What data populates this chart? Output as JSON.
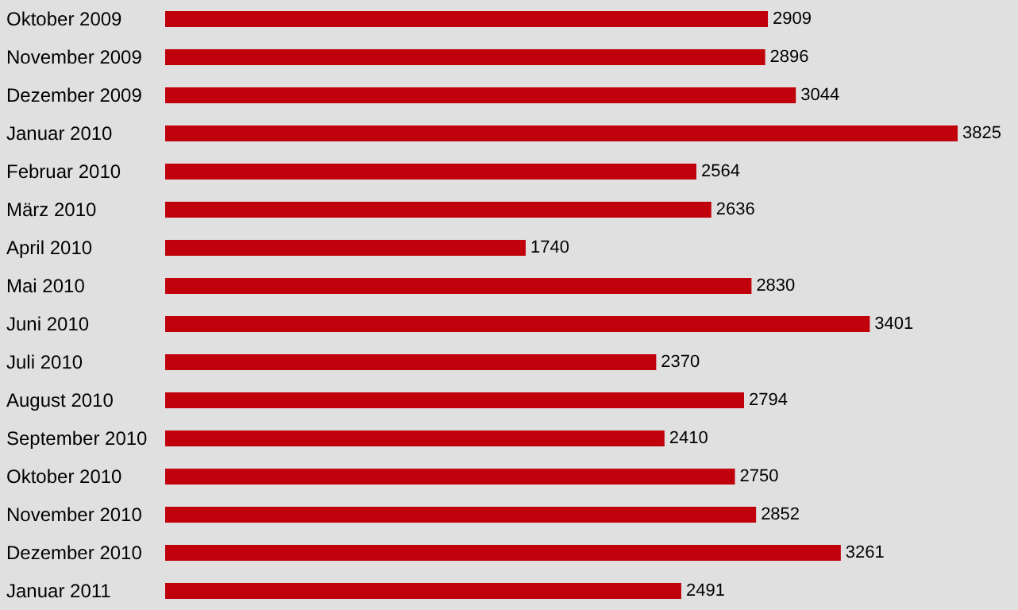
{
  "chart_data": {
    "type": "bar",
    "orientation": "horizontal",
    "data_labels": true,
    "categories": [
      "Oktober 2009",
      "November 2009",
      "Dezember 2009",
      "Januar 2010",
      "Februar 2010",
      "März 2010",
      "April 2010",
      "Mai 2010",
      "Juni 2010",
      "Juli 2010",
      "August 2010",
      "September 2010",
      "Oktober 2010",
      "November 2010",
      "Dezember 2010",
      "Januar 2011"
    ],
    "values": [
      2909,
      2896,
      3044,
      3825,
      2564,
      2636,
      1740,
      2830,
      3401,
      2370,
      2794,
      2410,
      2750,
      2852,
      3261,
      2491
    ],
    "color": "#c0000b"
  }
}
